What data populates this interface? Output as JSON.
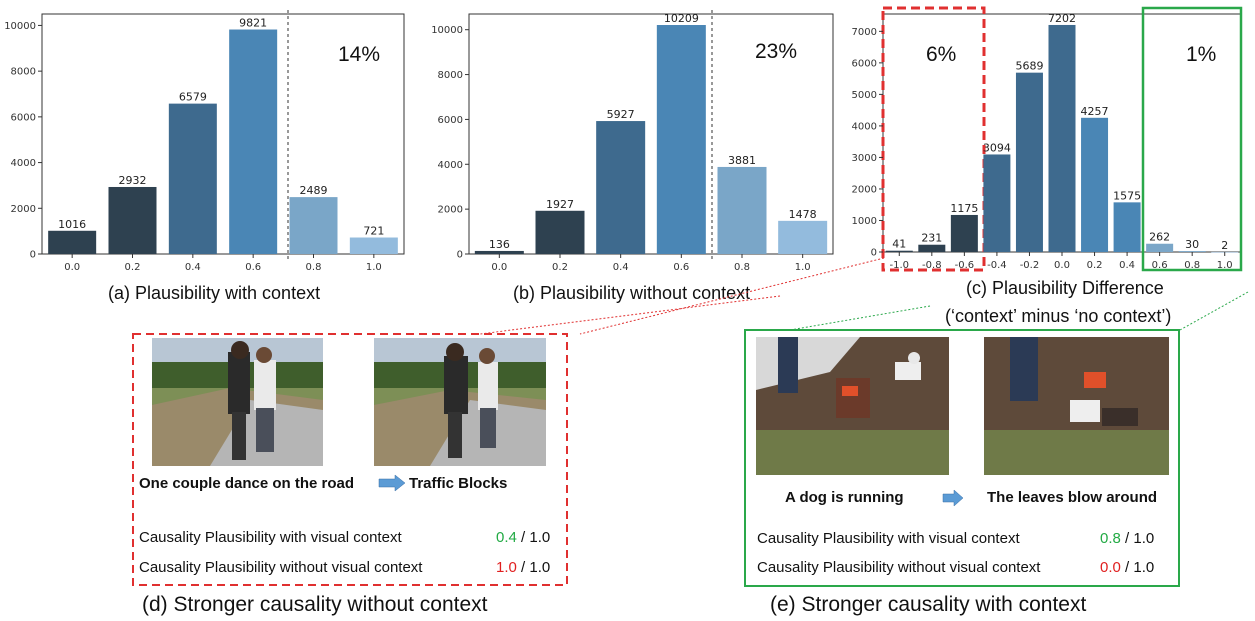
{
  "chart_data": [
    {
      "type": "bar",
      "title": "(a) Plausibility with context",
      "categories": [
        "0.0",
        "0.2",
        "0.4",
        "0.6",
        "0.8",
        "1.0"
      ],
      "values": [
        1016,
        2932,
        6579,
        9821,
        2489,
        721
      ],
      "ylim": [
        0,
        10500
      ],
      "yticks": [
        0,
        2000,
        4000,
        6000,
        8000,
        10000
      ],
      "annotation": "14%",
      "grid": false
    },
    {
      "type": "bar",
      "title": "(b) Plausibility without context",
      "categories": [
        "0.0",
        "0.2",
        "0.4",
        "0.6",
        "0.8",
        "1.0"
      ],
      "values": [
        136,
        1927,
        5927,
        10209,
        3881,
        1478
      ],
      "ylim": [
        0,
        10700
      ],
      "yticks": [
        0,
        2000,
        4000,
        6000,
        8000,
        10000
      ],
      "annotation": "23%",
      "grid": false
    },
    {
      "type": "bar",
      "title": "(c) Plausibility Difference",
      "subtitle": "(‘context’ minus ‘no context’)",
      "categories": [
        "-1.0",
        "-0.8",
        "-0.6",
        "-0.4",
        "-0.2",
        "0.0",
        "0.2",
        "0.4",
        "0.6",
        "0.8",
        "1.0"
      ],
      "values": [
        41,
        231,
        1175,
        3094,
        5689,
        7202,
        4257,
        1575,
        262,
        30,
        2
      ],
      "ylim": [
        0,
        7550
      ],
      "yticks": [
        0,
        1000,
        2000,
        3000,
        4000,
        5000,
        6000,
        7000
      ],
      "annotations": [
        "6%",
        "1%"
      ],
      "grid": false
    }
  ],
  "panel_d": {
    "caption": "(d) Stronger causality without context",
    "cause": "One couple dance on the road",
    "effect": "Traffic Blocks",
    "row1_label": "Causality Plausibility with visual context",
    "row1_score": "0.4",
    "row1_total": " / 1.0",
    "row2_label": "Causality Plausibility without visual context",
    "row2_score": "1.0",
    "row2_total": " / 1.0"
  },
  "panel_e": {
    "caption": "(e) Stronger causality with context",
    "cause": "A dog is running",
    "effect": "The leaves blow around",
    "row1_label": "Causality Plausibility with visual context",
    "row1_score": "0.8",
    "row1_total": " / 1.0",
    "row2_label": "Causality Plausibility without visual context",
    "row2_score": "0.0",
    "row2_total": " / 1.0"
  },
  "colors": {
    "dark": "#2e4150",
    "mid": "#3e6a8e",
    "blue": "#4a86b5",
    "light": "#7aa6c8",
    "lighter": "#93bbdd",
    "red_dash": "#e03030",
    "green_box": "#2aa84a",
    "score_green": "#22aa44",
    "score_red": "#e02020",
    "arrow": "#5b9bd5"
  }
}
